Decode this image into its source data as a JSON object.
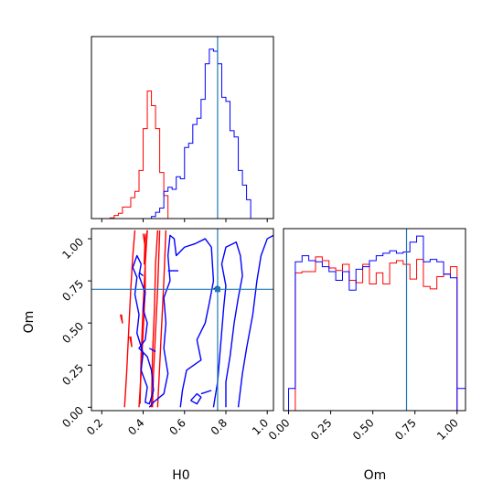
{
  "colors": {
    "series_a": "#ff0000",
    "series_b": "#0000ff",
    "truth": "#1f77b4",
    "axes": "#000000"
  },
  "chart_data": [
    {
      "type": "histogram",
      "panel": "H0 marginal",
      "xlabel": "",
      "ylabel": "",
      "xlim": [
        0.15,
        1.03
      ],
      "xticks": [
        0.2,
        0.4,
        0.6,
        0.8,
        1.0
      ],
      "x_tick_labels_shown": false,
      "truth": 0.76,
      "bin_edges": [
        0.24,
        0.26,
        0.28,
        0.3,
        0.32,
        0.34,
        0.36,
        0.38,
        0.4,
        0.42,
        0.44,
        0.46,
        0.48,
        0.5,
        0.52,
        0.54,
        0.56,
        0.58,
        0.6,
        0.62,
        0.64,
        0.66,
        0.68,
        0.7,
        0.72,
        0.74,
        0.76,
        0.78,
        0.8,
        0.82,
        0.84,
        0.86,
        0.88,
        0.9,
        0.92,
        0.94
      ],
      "series": [
        {
          "color": "#ff0000",
          "values": [
            0.3,
            1.5,
            2.5,
            5.5,
            5.5,
            10,
            13,
            23,
            43,
            61,
            54,
            43,
            22,
            11,
            0,
            0,
            0,
            0,
            0,
            0,
            0,
            0,
            0,
            0,
            0,
            0,
            0,
            0,
            0,
            0,
            0,
            0,
            0,
            0,
            0
          ]
        },
        {
          "color": "#0000ff",
          "values": [
            0,
            0,
            0,
            0,
            0,
            0,
            0,
            0,
            0,
            0,
            1,
            3,
            5,
            13,
            15,
            14,
            20,
            19,
            34,
            36,
            45,
            48,
            57,
            74,
            81,
            80,
            74,
            58,
            56,
            42,
            39,
            23,
            16,
            9,
            0
          ]
        }
      ]
    },
    {
      "type": "contour",
      "panel": "H0 vs Om joint",
      "xlabel": "H0",
      "ylabel": "Om",
      "xlim": [
        0.15,
        1.03
      ],
      "ylim": [
        -0.02,
        1.06
      ],
      "xticks": [
        0.2,
        0.4,
        0.6,
        0.8,
        1.0
      ],
      "x_tick_labels": [
        "0.2",
        "0.4",
        "0.6",
        "0.8",
        "1.0"
      ],
      "yticks": [
        0.0,
        0.25,
        0.5,
        0.75,
        1.0
      ],
      "y_tick_labels": [
        "0.00",
        "0.25",
        "0.50",
        "0.75",
        "1.00"
      ],
      "truth": [
        0.76,
        0.7
      ],
      "series": [
        {
          "color": "#ff0000",
          "contours": [
            [
              [
                0.38,
                0.0
              ],
              [
                0.39,
                0.2
              ],
              [
                0.4,
                0.45
              ],
              [
                0.41,
                0.7
              ],
              [
                0.41,
                0.9
              ],
              [
                0.42,
                1.05
              ]
            ],
            [
              [
                0.445,
                0.0
              ],
              [
                0.45,
                0.2
              ],
              [
                0.46,
                0.45
              ],
              [
                0.47,
                0.7
              ],
              [
                0.48,
                1.05
              ]
            ],
            [
              [
                0.31,
                0.0
              ],
              [
                0.32,
                0.2
              ],
              [
                0.33,
                0.45
              ],
              [
                0.34,
                0.7
              ],
              [
                0.35,
                0.9
              ],
              [
                0.36,
                1.05
              ]
            ],
            [
              [
                0.47,
                0.0
              ],
              [
                0.48,
                0.25
              ],
              [
                0.49,
                0.5
              ],
              [
                0.5,
                0.75
              ],
              [
                0.51,
                1.05
              ]
            ],
            [
              [
                0.385,
                0.02
              ],
              [
                0.39,
                0.3
              ],
              [
                0.4,
                0.6
              ],
              [
                0.41,
                0.85
              ],
              [
                0.42,
                1.05
              ]
            ],
            [
              [
                0.44,
                0.0
              ],
              [
                0.445,
                0.3
              ],
              [
                0.455,
                0.6
              ],
              [
                0.46,
                0.85
              ],
              [
                0.47,
                1.05
              ]
            ],
            [
              [
                0.4,
                1.03
              ],
              [
                0.41,
                0.95
              ],
              [
                0.405,
                0.85
              ],
              [
                0.41,
                1.03
              ]
            ],
            [
              [
                0.29,
                0.55
              ],
              [
                0.3,
                0.5
              ],
              [
                0.295,
                0.55
              ]
            ],
            [
              [
                0.335,
                0.42
              ],
              [
                0.345,
                0.36
              ],
              [
                0.34,
                0.42
              ]
            ]
          ]
        },
        {
          "color": "#0000ff",
          "contours": [
            [
              [
                0.35,
                0.83
              ],
              [
                0.37,
                0.9
              ],
              [
                0.39,
                0.85
              ],
              [
                0.38,
                0.78
              ],
              [
                0.41,
                0.68
              ],
              [
                0.4,
                0.58
              ],
              [
                0.42,
                0.5
              ],
              [
                0.41,
                0.4
              ],
              [
                0.38,
                0.35
              ],
              [
                0.42,
                0.3
              ],
              [
                0.44,
                0.22
              ],
              [
                0.45,
                0.1
              ],
              [
                0.43,
                0.02
              ],
              [
                0.41,
                0.03
              ],
              [
                0.42,
                0.12
              ],
              [
                0.39,
                0.22
              ],
              [
                0.4,
                0.32
              ],
              [
                0.37,
                0.44
              ],
              [
                0.38,
                0.55
              ],
              [
                0.36,
                0.67
              ],
              [
                0.37,
                0.77
              ],
              [
                0.35,
                0.83
              ]
            ],
            [
              [
                0.43,
                0.0
              ],
              [
                0.45,
                0.03
              ],
              [
                0.5,
                0.08
              ],
              [
                0.52,
                0.2
              ],
              [
                0.5,
                0.35
              ],
              [
                0.51,
                0.5
              ],
              [
                0.5,
                0.65
              ],
              [
                0.53,
                0.75
              ],
              [
                0.52,
                0.9
              ],
              [
                0.53,
                1.02
              ],
              [
                0.55,
                1.0
              ],
              [
                0.56,
                0.9
              ],
              [
                0.6,
                0.95
              ],
              [
                0.65,
                0.97
              ],
              [
                0.7,
                1.0
              ],
              [
                0.73,
                0.95
              ],
              [
                0.74,
                0.75
              ],
              [
                0.72,
                0.62
              ],
              [
                0.7,
                0.5
              ],
              [
                0.66,
                0.4
              ],
              [
                0.68,
                0.28
              ],
              [
                0.61,
                0.22
              ],
              [
                0.59,
                0.1
              ],
              [
                0.58,
                0.0
              ]
            ],
            [
              [
                0.74,
                0.0
              ],
              [
                0.76,
                0.15
              ],
              [
                0.77,
                0.3
              ],
              [
                0.78,
                0.45
              ],
              [
                0.79,
                0.6
              ],
              [
                0.8,
                0.72
              ],
              [
                0.78,
                0.85
              ],
              [
                0.8,
                0.95
              ],
              [
                0.85,
                0.98
              ],
              [
                0.87,
                0.9
              ],
              [
                0.88,
                0.78
              ],
              [
                0.86,
                0.65
              ],
              [
                0.84,
                0.5
              ],
              [
                0.82,
                0.3
              ],
              [
                0.8,
                0.15
              ],
              [
                0.8,
                0.0
              ]
            ],
            [
              [
                0.86,
                0.0
              ],
              [
                0.88,
                0.2
              ],
              [
                0.9,
                0.35
              ],
              [
                0.93,
                0.55
              ],
              [
                0.95,
                0.75
              ],
              [
                0.97,
                0.9
              ],
              [
                1.0,
                1.0
              ],
              [
                1.03,
                1.02
              ]
            ],
            [
              [
                0.63,
                0.04
              ],
              [
                0.66,
                0.08
              ],
              [
                0.68,
                0.06
              ],
              [
                0.66,
                0.02
              ],
              [
                0.63,
                0.04
              ]
            ],
            [
              [
                0.68,
                0.08
              ],
              [
                0.73,
                0.1
              ]
            ],
            [
              [
                0.52,
                0.81
              ],
              [
                0.57,
                0.81
              ]
            ],
            [
              [
                0.38,
                0.8
              ],
              [
                0.4,
                0.78
              ]
            ],
            [
              [
                0.43,
                0.35
              ],
              [
                0.46,
                0.33
              ]
            ],
            [
              [
                0.74,
                0.7
              ],
              [
                0.76,
                0.72
              ],
              [
                0.77,
                0.7
              ]
            ]
          ]
        }
      ]
    },
    {
      "type": "histogram",
      "panel": "Om marginal",
      "xlabel": "Om",
      "ylabel": "",
      "xlim": [
        -0.03,
        1.05
      ],
      "xticks": [
        0.0,
        0.25,
        0.5,
        0.75,
        1.0
      ],
      "x_tick_labels": [
        "0.00",
        "0.25",
        "0.50",
        "0.75",
        "1.00"
      ],
      "truth": 0.7,
      "bin_edges": [
        0.0,
        0.04,
        0.08,
        0.12,
        0.16,
        0.2,
        0.24,
        0.28,
        0.32,
        0.36,
        0.4,
        0.44,
        0.48,
        0.52,
        0.56,
        0.6,
        0.64,
        0.68,
        0.72,
        0.76,
        0.8,
        0.84,
        0.88,
        0.92,
        0.96,
        1.0
      ],
      "series": [
        {
          "color": "#ff0000",
          "values": [
            0,
            112,
            113,
            113,
            125,
            122,
            116,
            114,
            119,
            106,
            104,
            119,
            103,
            112,
            103,
            120,
            122,
            119,
            107,
            123,
            101,
            99,
            109,
            111,
            117
          ]
        },
        {
          "color": "#0000ff",
          "values": [
            18,
            121,
            126,
            122,
            121,
            117,
            113,
            106,
            113,
            98,
            115,
            117,
            122,
            126,
            128,
            130,
            128,
            129,
            137,
            142,
            121,
            123,
            121,
            111,
            108
          ]
        }
      ],
      "tail_after_1": 18
    }
  ]
}
